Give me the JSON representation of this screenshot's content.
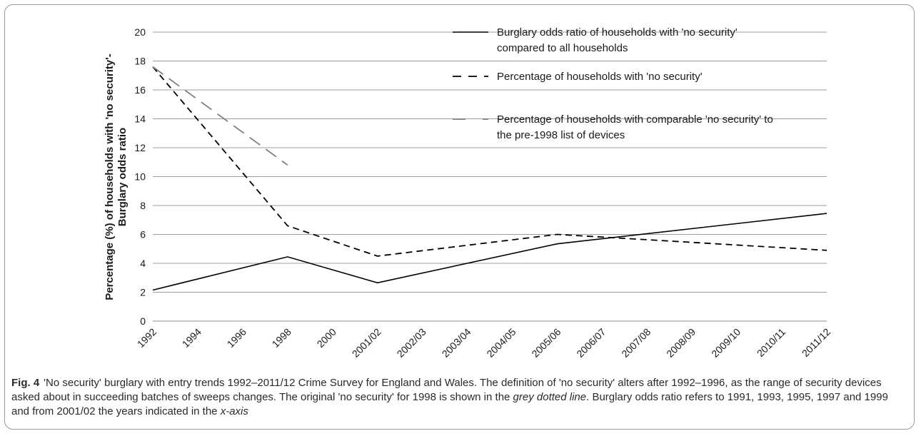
{
  "chart_data": {
    "type": "line",
    "title": "",
    "xlabel": "",
    "ylabel": "Percentage (%) of households with 'no security'-Burglary odds ratio",
    "ylabel_lines": [
      "Percentage (%) of households with 'no security'-",
      "Burglary odds ratio"
    ],
    "ylim": [
      0,
      20
    ],
    "y_ticks": [
      0,
      2,
      4,
      6,
      8,
      10,
      12,
      14,
      16,
      18,
      20
    ],
    "grid": true,
    "legend_position": "top-right",
    "categories": [
      "1992",
      "1994",
      "1996",
      "1998",
      "2000",
      "2001/02",
      "2002/03",
      "2003/04",
      "2004/05",
      "2005/06",
      "2006/07",
      "2007/08",
      "2008/09",
      "2009/10",
      "2010/11",
      "2011/12"
    ],
    "series": [
      {
        "name": "Burglary odds ratio of households with 'no security' compared to all households",
        "legend_lines": [
          "Burglary odds ratio of households with 'no security'",
          "compared to all households"
        ],
        "style": "solid",
        "color": "#000000",
        "points": [
          [
            0,
            2.15
          ],
          [
            3,
            4.45
          ],
          [
            5,
            2.65
          ],
          [
            9,
            5.35
          ],
          [
            15,
            7.45
          ]
        ]
      },
      {
        "name": "Percentage of households with 'no security'",
        "legend_lines": [
          "Percentage of households with 'no security'"
        ],
        "style": "dashed",
        "color": "#000000",
        "points": [
          [
            0,
            17.6
          ],
          [
            3,
            6.6
          ],
          [
            5,
            4.5
          ],
          [
            9,
            6.0
          ],
          [
            15,
            4.9
          ]
        ]
      },
      {
        "name": "Percentage of households with comparable 'no security' to the pre-1998 list of devices",
        "legend_lines": [
          "Percentage of households with comparable 'no security' to",
          "the pre-1998 list of devices"
        ],
        "style": "longdash",
        "color": "#7f7f7f",
        "points": [
          [
            0,
            17.6
          ],
          [
            3,
            10.8
          ]
        ]
      }
    ]
  },
  "caption": {
    "label": "Fig. 4",
    "text_1": "'No security' burglary with entry trends 1992–2011/12 Crime Survey for England and Wales. The definition of 'no security' alters after 1992–1996, as the range of security devices asked about in succeeding batches of sweeps changes. The original 'no security' for 1998 is shown in the ",
    "italic_1": "grey dotted line",
    "text_2": ". Burglary odds ratio refers to 1991, 1993, 1995, 1997 and 1999 and from 2001/02 the years indicated in the ",
    "italic_2": "x-axis"
  }
}
